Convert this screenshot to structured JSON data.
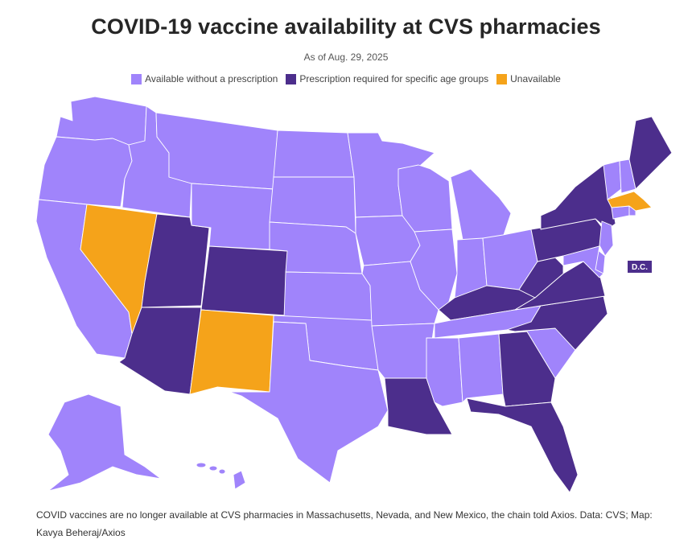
{
  "header": {
    "title": "COVID-19 vaccine availability at CVS pharmacies",
    "subtitle": "As of Aug. 29, 2025"
  },
  "legend": [
    {
      "key": "available",
      "label": "Available without a prescription",
      "color": "#a084fb"
    },
    {
      "key": "prescription",
      "label": "Prescription required for specific age groups",
      "color": "#4c2e8c"
    },
    {
      "key": "unavailable",
      "label": "Unavailable",
      "color": "#f5a31a"
    }
  ],
  "map": {
    "dc_label": "D.C.",
    "dc_status": "prescription",
    "states": {
      "WA": "available",
      "OR": "available",
      "CA": "available",
      "ID": "available",
      "NV": "unavailable",
      "UT": "prescription",
      "AZ": "prescription",
      "MT": "available",
      "WY": "available",
      "CO": "prescription",
      "NM": "unavailable",
      "ND": "available",
      "SD": "available",
      "NE": "available",
      "KS": "available",
      "OK": "available",
      "TX": "available",
      "MN": "available",
      "IA": "available",
      "MO": "available",
      "AR": "available",
      "LA": "prescription",
      "WI": "available",
      "IL": "available",
      "MI": "available",
      "IN": "available",
      "OH": "available",
      "KY": "prescription",
      "TN": "available",
      "MS": "available",
      "AL": "available",
      "GA": "prescription",
      "FL": "prescription",
      "SC": "available",
      "NC": "prescription",
      "VA": "prescription",
      "WV": "prescription",
      "PA": "prescription",
      "NY": "prescription",
      "NJ": "available",
      "DE": "available",
      "MD": "available",
      "CT": "available",
      "RI": "available",
      "MA": "unavailable",
      "VT": "available",
      "NH": "available",
      "ME": "prescription",
      "AK": "available",
      "HI": "available"
    }
  },
  "footer": {
    "note": "COVID vaccines are no longer available at CVS pharmacies in Massachusetts, Nevada, and New Mexico, the chain told Axios. Data: CVS; Map: Kavya Beheraj/Axios"
  }
}
